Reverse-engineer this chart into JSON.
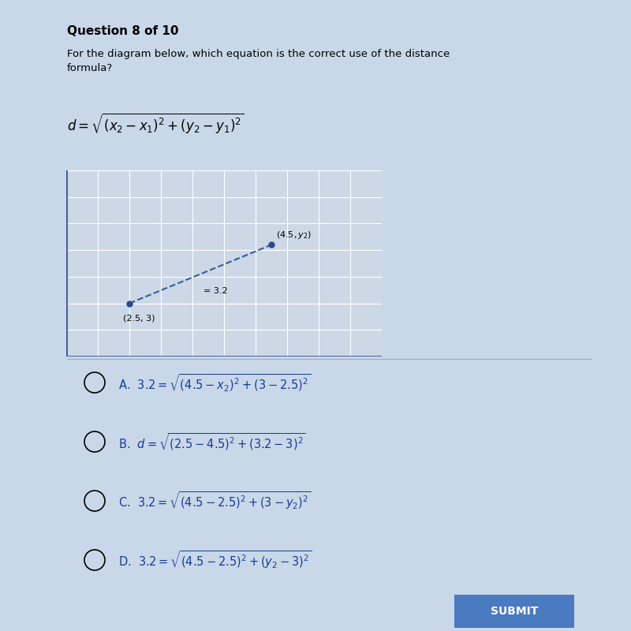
{
  "bg_color": "#c8d8e8",
  "title": "Question 8 of 10",
  "question": "For the diagram below, which equation is the correct use of the distance\nformula?",
  "grid_bg": "#ccd8e6",
  "line_color": "#3a5a9a",
  "dot_color": "#2a4a8a",
  "submit_bg": "#4a7abf",
  "submit_text": "SUBMIT",
  "option_color": "#1a3a9a",
  "sep_color": "#aaaaaa"
}
